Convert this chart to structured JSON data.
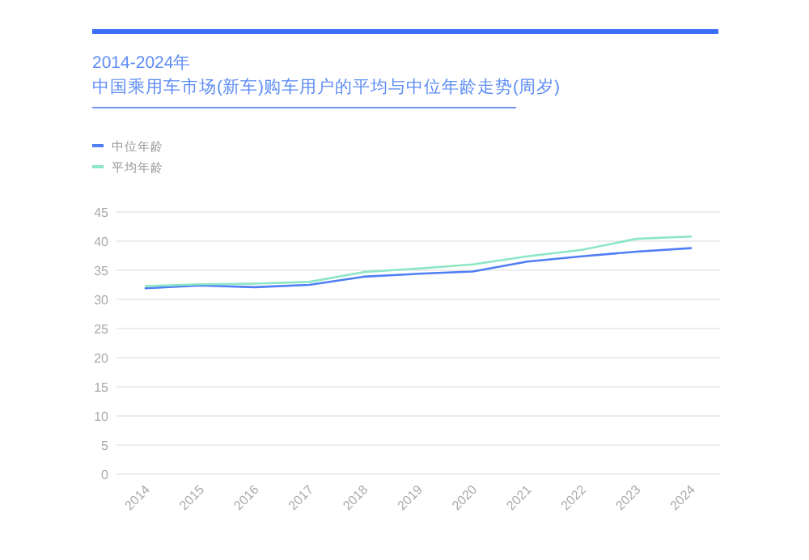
{
  "chart_data": {
    "type": "line",
    "title": "2014-2024年",
    "subtitle": "中国乘用车市场(新车)购车用户的平均与中位年龄走势(周岁)",
    "categories": [
      "2014",
      "2015",
      "2016",
      "2017",
      "2018",
      "2019",
      "2020",
      "2021",
      "2022",
      "2023",
      "2024"
    ],
    "series": [
      {
        "name": "中位年龄",
        "color": "#4f7ef5",
        "values": [
          31.9,
          32.4,
          32.1,
          32.5,
          33.9,
          34.4,
          34.8,
          36.5,
          37.4,
          38.2,
          38.8
        ]
      },
      {
        "name": "平均年龄",
        "color": "#8de6c6",
        "values": [
          32.3,
          32.6,
          32.7,
          33.0,
          34.7,
          35.3,
          36.0,
          37.4,
          38.5,
          40.4,
          40.8
        ]
      }
    ],
    "ylim": [
      0,
      45
    ],
    "yticks": [
      0,
      5,
      10,
      15,
      20,
      25,
      30,
      35,
      40,
      45
    ],
    "grid": "y",
    "legend": "top left",
    "marker": "none",
    "line_style": "solid"
  }
}
